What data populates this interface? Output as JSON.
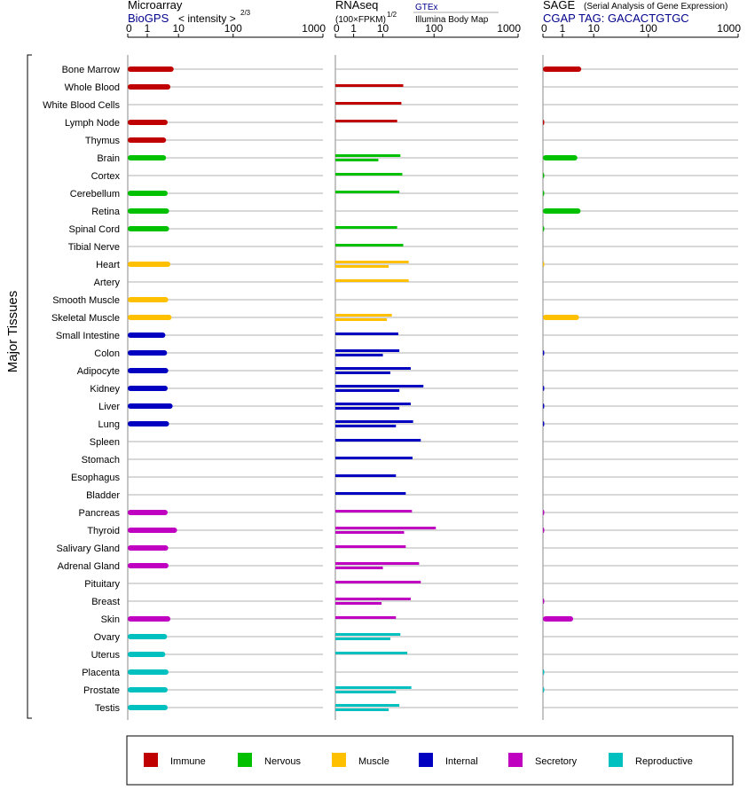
{
  "chart_data": {
    "type": "bar",
    "side_label": "Major Tissues",
    "ticks": [
      0,
      1,
      10,
      100,
      1000
    ],
    "tick_labels": [
      "0",
      "1",
      "10",
      "100",
      "1000"
    ],
    "panels": [
      {
        "key": "microarray",
        "title": "Microarray",
        "source": "BioGPS",
        "metric": "< intensity >",
        "metric_exponent": "2/3",
        "xlim": [
          0,
          1000
        ]
      },
      {
        "key": "rnaseq",
        "title": "RNAseq",
        "metric": "(100×FPKM)",
        "metric_exponent": "1/2",
        "source": "GTEx",
        "source2": "Illumina Body Map",
        "xlim": [
          0,
          1000
        ]
      },
      {
        "key": "sage",
        "title": "SAGE",
        "subtitle": "(Serial Analysis of Gene Expression)",
        "source": "CGAP TAG: GACACTGTGC",
        "xlim": [
          0,
          1000
        ]
      }
    ],
    "groups": [
      {
        "name": "Immune",
        "color": "#c00000"
      },
      {
        "name": "Nervous",
        "color": "#00c000"
      },
      {
        "name": "Muscle",
        "color": "#ffc000"
      },
      {
        "name": "Internal",
        "color": "#0000c0"
      },
      {
        "name": "Secretory",
        "color": "#c000c0"
      },
      {
        "name": "Reproductive",
        "color": "#00c0c0"
      }
    ],
    "tissues": [
      {
        "name": "Bone Marrow",
        "group": 0,
        "microarray": 7,
        "rnaseq": [],
        "sage": 4
      },
      {
        "name": "Whole Blood",
        "group": 0,
        "microarray": 5.5,
        "rnaseq": [
          25
        ],
        "sage": 0
      },
      {
        "name": "White Blood Cells",
        "group": 0,
        "microarray": 0,
        "rnaseq": [
          23
        ],
        "sage": 0
      },
      {
        "name": "Lymph Node",
        "group": 0,
        "microarray": 4.5,
        "rnaseq": [
          19
        ],
        "sage": 0.05
      },
      {
        "name": "Thymus",
        "group": 0,
        "microarray": 4,
        "rnaseq": [],
        "sage": 0
      },
      {
        "name": "Brain",
        "group": 1,
        "microarray": 4,
        "rnaseq": [
          22,
          7
        ],
        "sage": 3
      },
      {
        "name": "Cortex",
        "group": 1,
        "microarray": 0,
        "rnaseq": [
          24
        ],
        "sage": 0.02
      },
      {
        "name": "Cerebellum",
        "group": 1,
        "microarray": 4.5,
        "rnaseq": [
          21
        ],
        "sage": 0.02
      },
      {
        "name": "Retina",
        "group": 1,
        "microarray": 5,
        "rnaseq": [],
        "sage": 3.8
      },
      {
        "name": "Spinal Cord",
        "group": 1,
        "microarray": 5,
        "rnaseq": [
          19
        ],
        "sage": 0.02
      },
      {
        "name": "Tibial Nerve",
        "group": 1,
        "microarray": 0,
        "rnaseq": [
          25
        ],
        "sage": 0
      },
      {
        "name": "Heart",
        "group": 2,
        "microarray": 5.5,
        "rnaseq": [
          32,
          13
        ],
        "sage": 0.01
      },
      {
        "name": "Artery",
        "group": 2,
        "microarray": 0,
        "rnaseq": [
          32
        ],
        "sage": 0
      },
      {
        "name": "Smooth Muscle",
        "group": 2,
        "microarray": 4.7,
        "rnaseq": [],
        "sage": 0
      },
      {
        "name": "Skeletal Muscle",
        "group": 2,
        "microarray": 6,
        "rnaseq": [
          15,
          12
        ],
        "sage": 3.4
      },
      {
        "name": "Small Intestine",
        "group": 3,
        "microarray": 3.8,
        "rnaseq": [
          20
        ],
        "sage": 0
      },
      {
        "name": "Colon",
        "group": 3,
        "microarray": 4.3,
        "rnaseq": [
          21,
          10
        ],
        "sage": 0.05
      },
      {
        "name": "Adipocyte",
        "group": 3,
        "microarray": 4.7,
        "rnaseq": [
          35,
          14
        ],
        "sage": 0
      },
      {
        "name": "Kidney",
        "group": 3,
        "microarray": 4.5,
        "rnaseq": [
          62,
          21
        ],
        "sage": 0.05
      },
      {
        "name": "Liver",
        "group": 3,
        "microarray": 6.5,
        "rnaseq": [
          35,
          21
        ],
        "sage": 0.05
      },
      {
        "name": "Lung",
        "group": 3,
        "microarray": 5,
        "rnaseq": [
          39,
          18
        ],
        "sage": 0.05
      },
      {
        "name": "Spleen",
        "group": 3,
        "microarray": 0,
        "rnaseq": [
          55
        ],
        "sage": 0
      },
      {
        "name": "Stomach",
        "group": 3,
        "microarray": 0,
        "rnaseq": [
          38
        ],
        "sage": 0
      },
      {
        "name": "Esophagus",
        "group": 3,
        "microarray": 0,
        "rnaseq": [
          18
        ],
        "sage": 0
      },
      {
        "name": "Bladder",
        "group": 3,
        "microarray": 0,
        "rnaseq": [
          28
        ],
        "sage": 0
      },
      {
        "name": "Pancreas",
        "group": 4,
        "microarray": 4.5,
        "rnaseq": [
          37
        ],
        "sage": 0.05
      },
      {
        "name": "Thyroid",
        "group": 4,
        "microarray": 9,
        "rnaseq": [
          105,
          26
        ],
        "sage": 0.05
      },
      {
        "name": "Salivary Gland",
        "group": 4,
        "microarray": 4.7,
        "rnaseq": [
          28
        ],
        "sage": 0
      },
      {
        "name": "Adrenal Gland",
        "group": 4,
        "microarray": 4.8,
        "rnaseq": [
          51,
          10
        ],
        "sage": 0
      },
      {
        "name": "Pituitary",
        "group": 4,
        "microarray": 0,
        "rnaseq": [
          55
        ],
        "sage": 0
      },
      {
        "name": "Breast",
        "group": 4,
        "microarray": 0,
        "rnaseq": [
          35,
          9
        ],
        "sage": 0.03
      },
      {
        "name": "Skin",
        "group": 4,
        "microarray": 5.5,
        "rnaseq": [
          18
        ],
        "sage": 2.2
      },
      {
        "name": "Ovary",
        "group": 5,
        "microarray": 4.3,
        "rnaseq": [
          22,
          14
        ],
        "sage": 0
      },
      {
        "name": "Uterus",
        "group": 5,
        "microarray": 3.8,
        "rnaseq": [
          30
        ],
        "sage": 0
      },
      {
        "name": "Placenta",
        "group": 5,
        "microarray": 4.8,
        "rnaseq": [],
        "sage": 0.02
      },
      {
        "name": "Prostate",
        "group": 5,
        "microarray": 4.5,
        "rnaseq": [
          36,
          18
        ],
        "sage": 0.02
      },
      {
        "name": "Testis",
        "group": 5,
        "microarray": 4.5,
        "rnaseq": [
          21,
          13
        ],
        "sage": 0
      }
    ]
  }
}
